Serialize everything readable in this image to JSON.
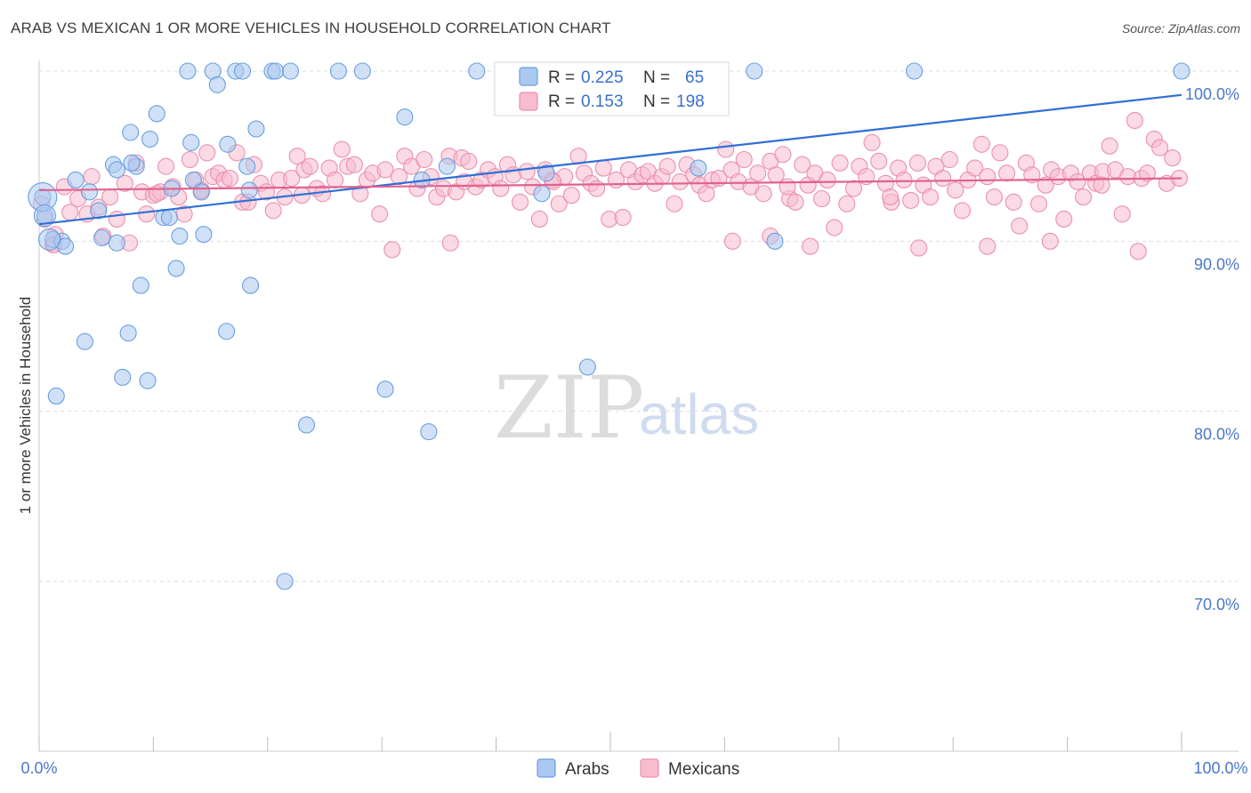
{
  "header": {
    "title": "ARAB VS MEXICAN 1 OR MORE VEHICLES IN HOUSEHOLD CORRELATION CHART",
    "source": "Source: ZipAtlas.com"
  },
  "watermark": {
    "zip": "ZIP",
    "atlas": "atlas"
  },
  "legend": {
    "arabs": {
      "r_label": "R =",
      "r_value": "0.225",
      "n_label": "N =",
      "n_value": "65"
    },
    "mexicans": {
      "r_label": "R =",
      "r_value": "0.153",
      "n_label": "N =",
      "n_value": "198"
    }
  },
  "bottom_legend": {
    "arabs": "Arabs",
    "mexicans": "Mexicans"
  },
  "colors": {
    "arabs_fill": "#aac8f0",
    "arabs_stroke": "#6a9ee0",
    "arabs_line": "#2f6fd6",
    "mexicans_fill": "#f7bccd",
    "mexicans_stroke": "#ea8fad",
    "mexicans_line": "#e0628f",
    "tick_text": "#4a78c9",
    "grid": "#dddddd"
  },
  "chart_data": {
    "type": "scatter",
    "title": "ARAB VS MEXICAN 1 OR MORE VEHICLES IN HOUSEHOLD CORRELATION CHART",
    "xlabel": "",
    "ylabel": "1 or more Vehicles in Household",
    "xlim": [
      0,
      100
    ],
    "ylim": [
      58.5,
      101.5
    ],
    "x_tick_labels": [
      "0.0%",
      "100.0%"
    ],
    "y_ticks": [
      70,
      80,
      90,
      100
    ],
    "y_tick_labels": [
      "70.0%",
      "80.0%",
      "90.0%",
      "100.0%"
    ],
    "grid": true,
    "legend_position": "top-center",
    "series": [
      {
        "name": "Arabs",
        "r": 0.225,
        "n": 65,
        "trend": [
          [
            0,
            91.0
          ],
          [
            100,
            98.6
          ]
        ],
        "points": [
          [
            0.3,
            92.6
          ],
          [
            0.5,
            91.5
          ],
          [
            1.2,
            90.1
          ],
          [
            1.5,
            80.9
          ],
          [
            2.0,
            90.0
          ],
          [
            2.3,
            89.7
          ],
          [
            3.2,
            93.6
          ],
          [
            4.0,
            84.1
          ],
          [
            4.4,
            92.9
          ],
          [
            5.2,
            91.8
          ],
          [
            5.5,
            90.2
          ],
          [
            6.5,
            94.5
          ],
          [
            6.8,
            94.2
          ],
          [
            7.3,
            82.0
          ],
          [
            7.8,
            84.6
          ],
          [
            8.0,
            96.4
          ],
          [
            8.5,
            94.4
          ],
          [
            8.9,
            87.4
          ],
          [
            9.5,
            81.8
          ],
          [
            9.7,
            96.0
          ],
          [
            10.3,
            97.5
          ],
          [
            10.9,
            91.4
          ],
          [
            11.4,
            91.4
          ],
          [
            12.0,
            88.4
          ],
          [
            12.3,
            90.3
          ],
          [
            13.3,
            95.8
          ],
          [
            13.0,
            100.0
          ],
          [
            13.5,
            93.6
          ],
          [
            14.2,
            92.9
          ],
          [
            14.4,
            90.4
          ],
          [
            15.2,
            100.0
          ],
          [
            15.6,
            99.2
          ],
          [
            16.4,
            84.7
          ],
          [
            16.5,
            95.7
          ],
          [
            17.2,
            100.0
          ],
          [
            17.8,
            100.0
          ],
          [
            18.2,
            94.4
          ],
          [
            18.5,
            87.4
          ],
          [
            19.0,
            96.6
          ],
          [
            20.4,
            100.0
          ],
          [
            20.7,
            100.0
          ],
          [
            21.5,
            70.0
          ],
          [
            22.0,
            100.0
          ],
          [
            23.4,
            79.2
          ],
          [
            26.2,
            100.0
          ],
          [
            28.3,
            100.0
          ],
          [
            30.3,
            81.3
          ],
          [
            32.0,
            97.3
          ],
          [
            33.5,
            93.6
          ],
          [
            34.1,
            78.8
          ],
          [
            35.7,
            94.4
          ],
          [
            38.3,
            100.0
          ],
          [
            44.2,
            100.0
          ],
          [
            44.0,
            92.8
          ],
          [
            44.4,
            94.0
          ],
          [
            48.0,
            82.6
          ],
          [
            57.7,
            94.3
          ],
          [
            62.6,
            100.0
          ],
          [
            64.4,
            90.0
          ],
          [
            76.6,
            100.0
          ],
          [
            100.0,
            100.0
          ],
          [
            8.1,
            94.6
          ],
          [
            6.8,
            89.9
          ],
          [
            18.4,
            93.0
          ],
          [
            11.6,
            93.1
          ]
        ]
      },
      {
        "name": "Mexicans",
        "r": 0.153,
        "n": 198,
        "trend": [
          [
            0,
            93.0
          ],
          [
            100,
            93.7
          ]
        ],
        "points": [
          [
            0.2,
            92.2
          ],
          [
            0.5,
            91.3
          ],
          [
            1.2,
            89.8
          ],
          [
            1.4,
            90.4
          ],
          [
            2.2,
            93.2
          ],
          [
            3.4,
            92.5
          ],
          [
            4.2,
            91.6
          ],
          [
            4.6,
            93.8
          ],
          [
            5.2,
            92.0
          ],
          [
            5.6,
            90.3
          ],
          [
            6.2,
            92.6
          ],
          [
            6.8,
            91.3
          ],
          [
            7.5,
            93.4
          ],
          [
            7.9,
            89.9
          ],
          [
            8.5,
            94.6
          ],
          [
            9.0,
            92.9
          ],
          [
            9.4,
            91.6
          ],
          [
            10.0,
            92.7
          ],
          [
            10.6,
            92.9
          ],
          [
            11.1,
            94.4
          ],
          [
            11.7,
            93.2
          ],
          [
            12.2,
            92.6
          ],
          [
            12.7,
            91.6
          ],
          [
            13.2,
            94.8
          ],
          [
            13.7,
            93.6
          ],
          [
            14.2,
            92.9
          ],
          [
            14.7,
            95.2
          ],
          [
            15.2,
            93.8
          ],
          [
            15.7,
            94.0
          ],
          [
            16.2,
            93.6
          ],
          [
            16.7,
            93.7
          ],
          [
            17.3,
            95.2
          ],
          [
            17.8,
            92.3
          ],
          [
            18.3,
            92.3
          ],
          [
            18.8,
            94.5
          ],
          [
            19.4,
            93.4
          ],
          [
            19.9,
            92.9
          ],
          [
            20.5,
            91.8
          ],
          [
            21.0,
            93.6
          ],
          [
            21.5,
            92.6
          ],
          [
            22.1,
            93.7
          ],
          [
            22.6,
            95.0
          ],
          [
            23.2,
            94.2
          ],
          [
            23.7,
            94.4
          ],
          [
            24.3,
            93.1
          ],
          [
            24.8,
            92.8
          ],
          [
            25.4,
            94.3
          ],
          [
            25.9,
            93.6
          ],
          [
            26.5,
            95.4
          ],
          [
            27.0,
            94.4
          ],
          [
            27.6,
            94.5
          ],
          [
            28.1,
            92.8
          ],
          [
            28.7,
            93.6
          ],
          [
            29.2,
            94.0
          ],
          [
            29.8,
            91.6
          ],
          [
            30.3,
            94.2
          ],
          [
            30.9,
            89.5
          ],
          [
            31.5,
            93.8
          ],
          [
            32.0,
            95.0
          ],
          [
            32.6,
            94.4
          ],
          [
            33.1,
            93.1
          ],
          [
            33.7,
            94.8
          ],
          [
            34.3,
            93.8
          ],
          [
            34.8,
            92.6
          ],
          [
            35.4,
            93.1
          ],
          [
            35.9,
            95.0
          ],
          [
            36.5,
            92.9
          ],
          [
            37.0,
            94.9
          ],
          [
            37.6,
            94.7
          ],
          [
            38.2,
            93.2
          ],
          [
            38.7,
            93.6
          ],
          [
            39.3,
            94.2
          ],
          [
            39.9,
            93.8
          ],
          [
            40.4,
            93.1
          ],
          [
            41.0,
            94.5
          ],
          [
            41.5,
            93.9
          ],
          [
            42.1,
            92.3
          ],
          [
            42.7,
            94.1
          ],
          [
            43.2,
            93.2
          ],
          [
            43.8,
            91.3
          ],
          [
            44.3,
            94.2
          ],
          [
            44.9,
            93.6
          ],
          [
            45.5,
            92.2
          ],
          [
            46.0,
            93.8
          ],
          [
            46.6,
            92.7
          ],
          [
            47.2,
            95.0
          ],
          [
            47.7,
            94.0
          ],
          [
            48.3,
            93.4
          ],
          [
            48.8,
            93.1
          ],
          [
            49.4,
            94.3
          ],
          [
            49.9,
            91.3
          ],
          [
            50.5,
            93.6
          ],
          [
            51.1,
            91.4
          ],
          [
            51.6,
            94.2
          ],
          [
            52.2,
            93.5
          ],
          [
            52.8,
            93.9
          ],
          [
            53.3,
            94.1
          ],
          [
            53.9,
            93.4
          ],
          [
            54.5,
            93.8
          ],
          [
            55.0,
            94.4
          ],
          [
            55.6,
            92.2
          ],
          [
            56.1,
            93.5
          ],
          [
            56.7,
            94.5
          ],
          [
            57.3,
            93.9
          ],
          [
            57.8,
            93.3
          ],
          [
            58.4,
            92.8
          ],
          [
            58.9,
            93.6
          ],
          [
            59.5,
            93.7
          ],
          [
            60.1,
            95.4
          ],
          [
            60.6,
            94.2
          ],
          [
            61.2,
            93.5
          ],
          [
            61.7,
            94.8
          ],
          [
            62.3,
            93.2
          ],
          [
            62.9,
            94.0
          ],
          [
            63.4,
            92.8
          ],
          [
            64.0,
            94.7
          ],
          [
            64.5,
            93.9
          ],
          [
            65.1,
            95.1
          ],
          [
            65.7,
            92.5
          ],
          [
            66.2,
            92.3
          ],
          [
            66.8,
            94.5
          ],
          [
            67.3,
            93.3
          ],
          [
            67.9,
            94.0
          ],
          [
            68.5,
            92.5
          ],
          [
            69.0,
            93.6
          ],
          [
            69.6,
            90.8
          ],
          [
            70.1,
            94.6
          ],
          [
            70.7,
            92.2
          ],
          [
            71.3,
            93.1
          ],
          [
            71.8,
            94.4
          ],
          [
            72.4,
            93.8
          ],
          [
            72.9,
            95.8
          ],
          [
            73.5,
            94.7
          ],
          [
            74.1,
            93.4
          ],
          [
            74.6,
            92.3
          ],
          [
            75.2,
            94.3
          ],
          [
            75.7,
            93.6
          ],
          [
            76.3,
            92.4
          ],
          [
            76.9,
            94.6
          ],
          [
            77.4,
            93.3
          ],
          [
            78.0,
            92.6
          ],
          [
            78.5,
            94.4
          ],
          [
            79.1,
            93.7
          ],
          [
            79.7,
            94.8
          ],
          [
            80.2,
            93.0
          ],
          [
            80.8,
            91.8
          ],
          [
            81.3,
            93.6
          ],
          [
            81.9,
            94.3
          ],
          [
            82.5,
            95.7
          ],
          [
            83.0,
            93.8
          ],
          [
            83.6,
            92.6
          ],
          [
            84.1,
            95.2
          ],
          [
            84.7,
            94.0
          ],
          [
            85.3,
            92.3
          ],
          [
            85.8,
            90.9
          ],
          [
            86.4,
            94.6
          ],
          [
            86.9,
            93.9
          ],
          [
            87.5,
            92.2
          ],
          [
            88.1,
            93.3
          ],
          [
            88.6,
            94.2
          ],
          [
            89.2,
            93.8
          ],
          [
            89.7,
            91.3
          ],
          [
            90.3,
            94.0
          ],
          [
            90.9,
            93.5
          ],
          [
            91.4,
            92.6
          ],
          [
            92.0,
            94.0
          ],
          [
            92.5,
            93.4
          ],
          [
            93.1,
            94.1
          ],
          [
            93.7,
            95.6
          ],
          [
            94.2,
            94.2
          ],
          [
            94.8,
            91.6
          ],
          [
            95.3,
            93.8
          ],
          [
            95.9,
            97.1
          ],
          [
            96.5,
            93.7
          ],
          [
            97.0,
            94.0
          ],
          [
            97.6,
            96.0
          ],
          [
            98.1,
            95.5
          ],
          [
            98.7,
            93.4
          ],
          [
            99.2,
            94.9
          ],
          [
            99.8,
            93.7
          ],
          [
            36.0,
            89.9
          ],
          [
            64.0,
            90.3
          ],
          [
            60.7,
            90.0
          ],
          [
            77.0,
            89.6
          ],
          [
            83.0,
            89.7
          ],
          [
            88.5,
            90.0
          ],
          [
            96.2,
            89.4
          ],
          [
            93.0,
            93.3
          ],
          [
            2.7,
            91.7
          ],
          [
            1.3,
            89.8
          ],
          [
            14.2,
            93.0
          ],
          [
            67.5,
            89.7
          ],
          [
            74.5,
            92.6
          ],
          [
            10.3,
            92.8
          ],
          [
            37.2,
            93.5
          ],
          [
            23.0,
            92.7
          ],
          [
            65.5,
            93.2
          ],
          [
            45.0,
            93.5
          ]
        ]
      }
    ]
  }
}
